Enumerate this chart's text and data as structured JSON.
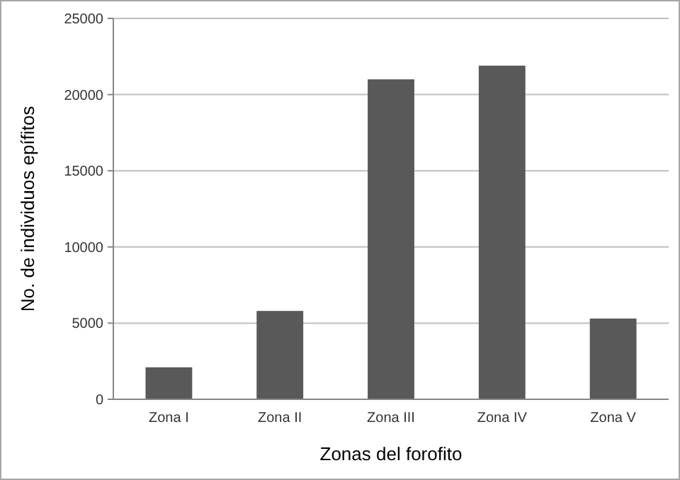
{
  "chart_data": {
    "type": "bar",
    "xlabel": "Zonas del forofito",
    "ylabel": "No. de individuos epífitos",
    "categories": [
      "Zona I",
      "Zona II",
      "Zona III",
      "Zona IV",
      "Zona V"
    ],
    "values": [
      2100,
      5800,
      21000,
      21900,
      5300
    ],
    "color": "#595959",
    "ylim": [
      0,
      25000
    ],
    "yticks": [
      0,
      5000,
      10000,
      15000,
      20000,
      25000
    ],
    "grid": "y"
  }
}
